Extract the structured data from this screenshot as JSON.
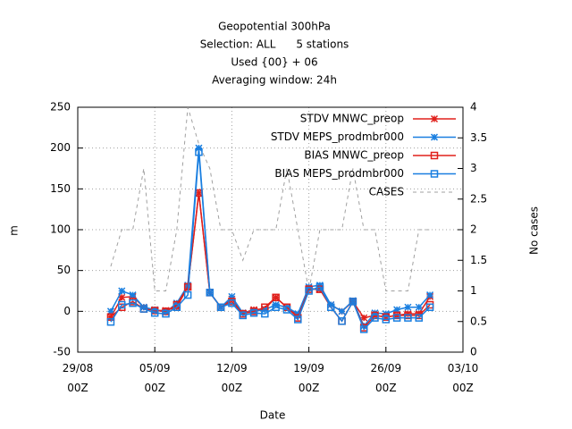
{
  "chart_data": {
    "type": "line",
    "title": "Geopotential 300hPa",
    "subtitle": [
      "Selection: ALL      5 stations",
      "Used {00} + 06",
      "Averaging window: 24h"
    ],
    "xlabel": "Date",
    "ylabel": "m",
    "y2label": "No cases",
    "xlim": [
      0,
      35
    ],
    "xticks": [
      {
        "value": 0,
        "label": "29/08 00Z"
      },
      {
        "value": 7,
        "label": "05/09 00Z"
      },
      {
        "value": 14,
        "label": "12/09 00Z"
      },
      {
        "value": 21,
        "label": "19/09 00Z"
      },
      {
        "value": 28,
        "label": "26/09 00Z"
      },
      {
        "value": 35,
        "label": "03/10 00Z"
      }
    ],
    "ylim": [
      -50,
      250
    ],
    "yticks": [
      -50,
      0,
      50,
      100,
      150,
      200,
      250
    ],
    "y2lim": [
      0,
      4
    ],
    "y2ticks": [
      0,
      0.5,
      1,
      1.5,
      2,
      2.5,
      3,
      3.5,
      4
    ],
    "grid": true,
    "legend": "top-right",
    "x": [
      3,
      4,
      5,
      6,
      7,
      8,
      9,
      10,
      11,
      12,
      13,
      14,
      15,
      16,
      17,
      18,
      19,
      20,
      21,
      22,
      23,
      24,
      25,
      26,
      27,
      28,
      29,
      30,
      31,
      32
    ],
    "series": [
      {
        "name": "STDV MNWC_preop",
        "color": "#e0201c",
        "marker": "star",
        "values": [
          -7,
          17,
          18,
          5,
          1,
          1,
          5,
          30,
          145,
          23,
          5,
          15,
          -2,
          2,
          3,
          17,
          5,
          -5,
          28,
          27,
          8,
          0,
          12,
          -8,
          -5,
          -7,
          -5,
          -3,
          -3,
          18
        ]
      },
      {
        "name": "STDV MEPS_prodmbr000",
        "color": "#1a7fe0",
        "marker": "star",
        "values": [
          0,
          25,
          20,
          5,
          2,
          -1,
          10,
          32,
          200,
          23,
          5,
          18,
          -2,
          0,
          2,
          8,
          5,
          -3,
          30,
          32,
          8,
          0,
          13,
          -18,
          -2,
          -3,
          2,
          5,
          5,
          20
        ]
      },
      {
        "name": "BIAS MNWC_preop",
        "color": "#e0201c",
        "marker": "square",
        "values": [
          -7,
          5,
          12,
          3,
          1,
          0,
          8,
          30,
          145,
          23,
          5,
          12,
          -3,
          0,
          5,
          17,
          5,
          -8,
          27,
          27,
          5,
          -12,
          12,
          -20,
          -5,
          -7,
          -5,
          -5,
          -5,
          8
        ]
      },
      {
        "name": "BIAS MEPS_prodmbr000",
        "color": "#1a7fe0",
        "marker": "square",
        "values": [
          -13,
          8,
          10,
          3,
          -2,
          -3,
          5,
          20,
          195,
          23,
          5,
          10,
          -5,
          -2,
          -3,
          5,
          2,
          -10,
          25,
          30,
          5,
          -12,
          12,
          -22,
          -8,
          -10,
          -8,
          -8,
          -8,
          5
        ]
      },
      {
        "name": "CASES",
        "color": "#a0a0a0",
        "marker": "none",
        "dashed": true,
        "axis": "y2",
        "values": [
          1.4,
          2,
          2,
          3,
          1,
          1,
          2,
          4,
          3.4,
          3,
          2,
          2,
          1.5,
          2,
          2,
          2,
          3,
          2,
          1,
          2,
          2,
          2,
          3,
          2,
          2,
          1,
          1,
          1,
          2,
          2
        ]
      }
    ]
  }
}
